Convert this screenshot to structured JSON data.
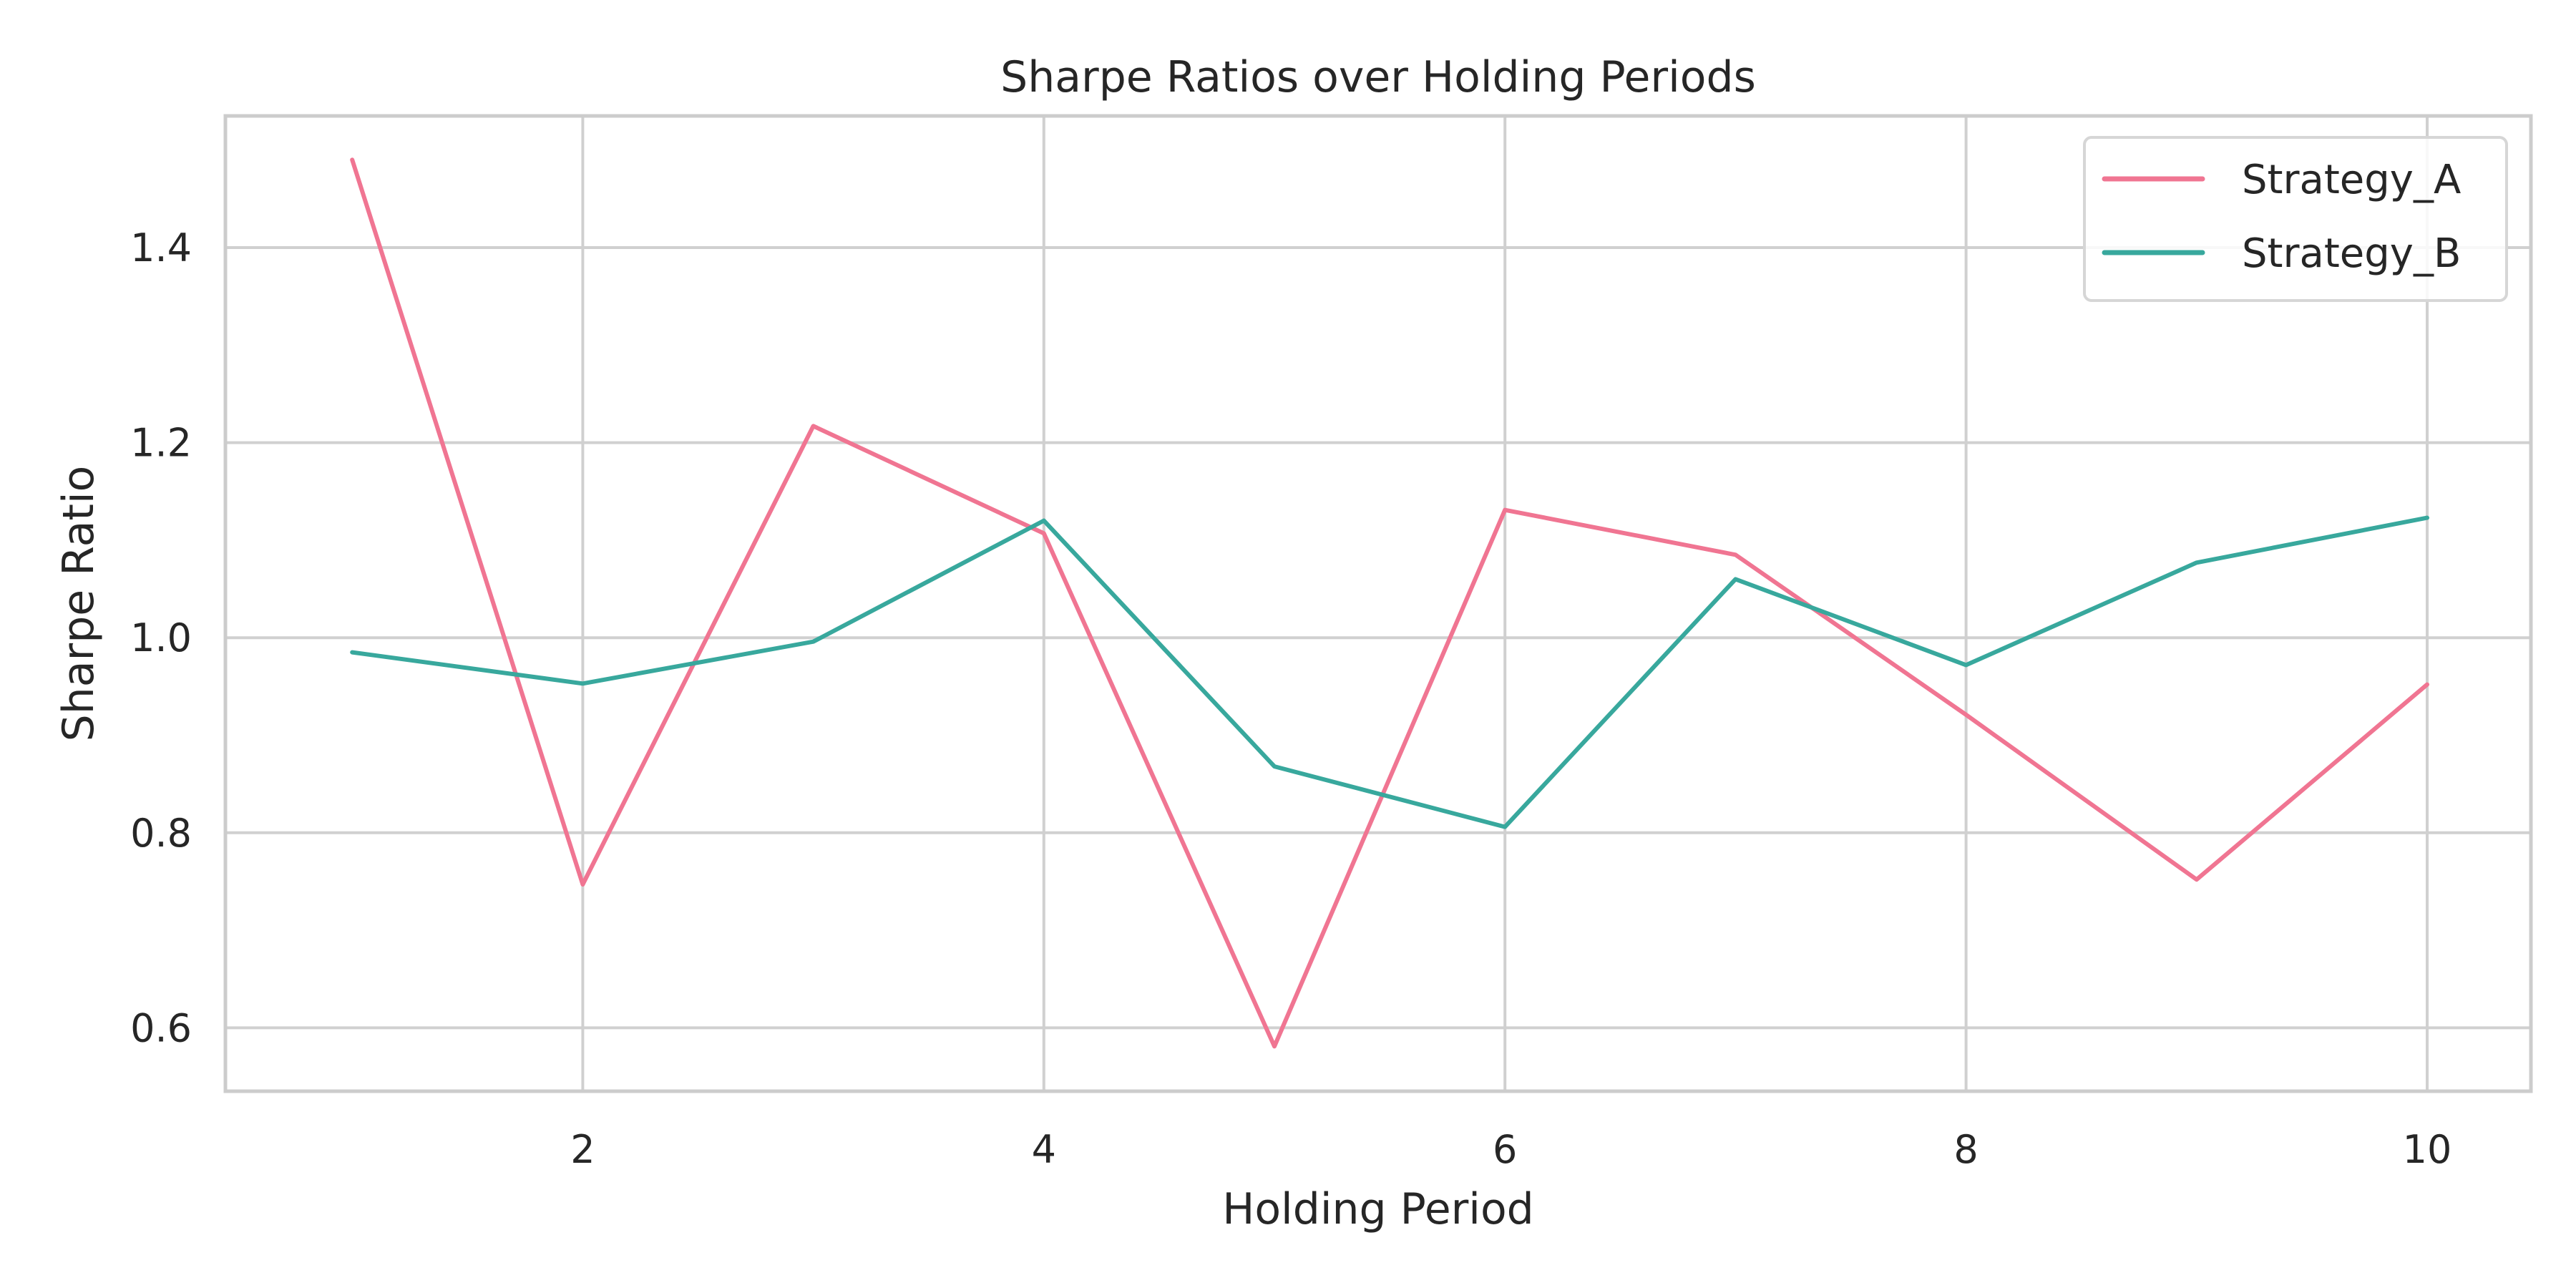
{
  "chart_data": {
    "type": "line",
    "title": "Sharpe Ratios over Holding Periods",
    "xlabel": "Holding Period",
    "ylabel": "Sharpe Ratio",
    "x": [
      1,
      2,
      3,
      4,
      5,
      6,
      7,
      8,
      9,
      10
    ],
    "xlim": [
      0.45,
      10.45
    ],
    "ylim": [
      0.535,
      1.535
    ],
    "xticks": [
      2,
      4,
      6,
      8,
      10
    ],
    "yticks": [
      0.6,
      0.8,
      1.0,
      1.2,
      1.4
    ],
    "xtick_labels": [
      "2",
      "4",
      "6",
      "8",
      "10"
    ],
    "ytick_labels": [
      "0.6",
      "0.8",
      "1.0",
      "1.2",
      "1.4"
    ],
    "grid": true,
    "legend_position": "top-right",
    "series": [
      {
        "name": "Strategy_A",
        "color": "#f07592",
        "values": [
          1.49,
          0.747,
          1.217,
          1.107,
          0.581,
          1.131,
          1.085,
          0.921,
          0.752,
          0.952
        ]
      },
      {
        "name": "Strategy_B",
        "color": "#38a89d",
        "values": [
          0.985,
          0.953,
          0.996,
          1.12,
          0.868,
          0.806,
          1.06,
          0.972,
          1.077,
          1.123
        ]
      }
    ]
  }
}
